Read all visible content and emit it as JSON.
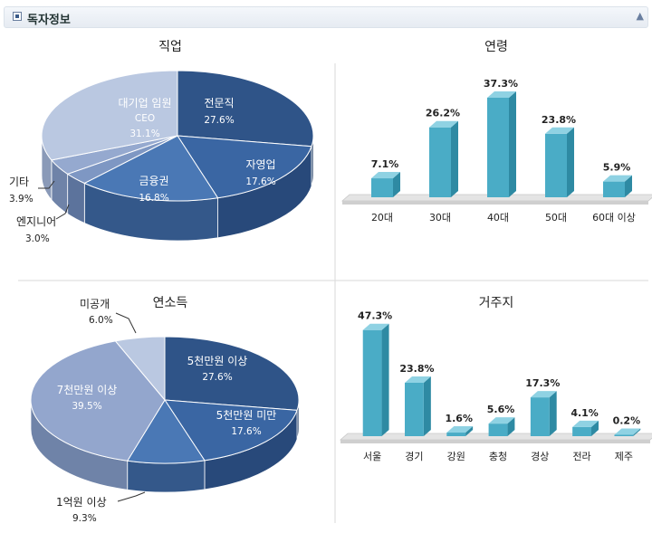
{
  "section": {
    "title": "독자정보"
  },
  "chart_data": [
    {
      "type": "pie",
      "title": "직업",
      "slices": [
        {
          "label": "전문직",
          "value": 27.6,
          "pct": "27.6%",
          "color": "#2f5488",
          "side": "#1f3b63"
        },
        {
          "label": "자영업",
          "value": 17.6,
          "pct": "17.6%",
          "color": "#3a66a3",
          "side": "#28497a"
        },
        {
          "label": "금융권",
          "value": 16.8,
          "pct": "16.8%",
          "color": "#4a78b5",
          "side": "#34588a"
        },
        {
          "label": "엔지니어",
          "value": 3.0,
          "pct": "3.0%",
          "color": "#7e97c3",
          "side": "#5c739c"
        },
        {
          "label": "기타",
          "value": 3.9,
          "pct": "3.9%",
          "color": "#95a9cf",
          "side": "#6f83a8"
        },
        {
          "label": "대기업 임원",
          "sublabel": "CEO",
          "value": 31.1,
          "pct": "31.1%",
          "color": "#bac8e1",
          "side": "#8a9ab8"
        }
      ]
    },
    {
      "type": "bar",
      "title": "연령",
      "categories": [
        "20대",
        "30대",
        "40대",
        "50대",
        "60대 이상"
      ],
      "values": [
        7.1,
        26.2,
        37.3,
        23.8,
        5.9
      ],
      "value_labels": [
        "7.1%",
        "26.2%",
        "37.3%",
        "23.8%",
        "5.9%"
      ],
      "ylim": [
        0,
        40
      ],
      "colors": {
        "front": "#4aacc6",
        "side": "#2e8aa3",
        "top": "#8fd2e3"
      }
    },
    {
      "type": "pie",
      "title": "연소득",
      "slices": [
        {
          "label": "5천만원 이상",
          "value": 27.6,
          "pct": "27.6%",
          "color": "#2f5488",
          "side": "#1f3b63"
        },
        {
          "label": "5천만원 미만",
          "value": 17.6,
          "pct": "17.6%",
          "color": "#3a66a3",
          "side": "#28497a"
        },
        {
          "label": "1억원 이상",
          "value": 9.3,
          "pct": "9.3%",
          "color": "#4a78b5",
          "side": "#34588a"
        },
        {
          "label": "7천만원 이상",
          "value": 39.5,
          "pct": "39.5%",
          "color": "#93a6cd",
          "side": "#6f83a8"
        },
        {
          "label": "미공개",
          "value": 6.0,
          "pct": "6.0%",
          "color": "#bac8e1",
          "side": "#8a9ab8"
        }
      ]
    },
    {
      "type": "bar",
      "title": "거주지",
      "categories": [
        "서울",
        "경기",
        "강원",
        "충청",
        "경상",
        "전라",
        "제주"
      ],
      "values": [
        47.3,
        23.8,
        1.6,
        5.6,
        17.3,
        4.1,
        0.2
      ],
      "value_labels": [
        "47.3%",
        "23.8%",
        "1.6%",
        "5.6%",
        "17.3%",
        "4.1%",
        "0.2%"
      ],
      "ylim": [
        0,
        50
      ],
      "colors": {
        "front": "#4aacc6",
        "side": "#2e8aa3",
        "top": "#8fd2e3"
      }
    }
  ]
}
